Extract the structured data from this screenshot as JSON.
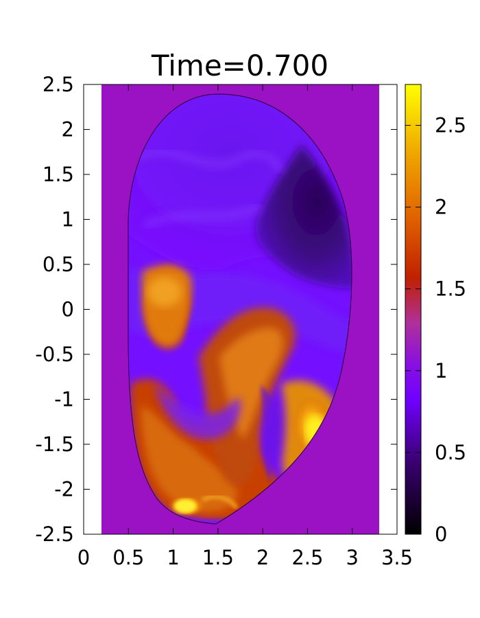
{
  "chart_data": {
    "type": "heatmap",
    "title": "Time=0.700",
    "xlabel": "",
    "ylabel": "",
    "xlim": [
      0,
      3.5
    ],
    "ylim": [
      -2.5,
      2.5
    ],
    "x_ticks": [
      "0",
      "0.5",
      "1",
      "1.5",
      "2",
      "2.5",
      "3",
      "3.5"
    ],
    "y_ticks": [
      "-2.5",
      "-2",
      "-1.5",
      "-1",
      "-0.5",
      "0",
      "0.5",
      "1",
      "1.5",
      "2",
      "2.5"
    ],
    "colorbar": {
      "range": [
        0,
        2.75
      ],
      "ticks": [
        "0",
        "0.5",
        "1",
        "1.5",
        "2",
        "2.5"
      ],
      "colors": [
        "#000000",
        "#3a0070",
        "#7000ff",
        "#a020c0",
        "#c02000",
        "#e06000",
        "#f0a000",
        "#ffff00"
      ]
    },
    "background_value": 1.0,
    "background_color": "#9b12c4",
    "data_extent_x": [
      0.2,
      3.3
    ],
    "domain_boundary": "D-shaped closed curve",
    "grid": false,
    "legend": "colorbar-right"
  }
}
